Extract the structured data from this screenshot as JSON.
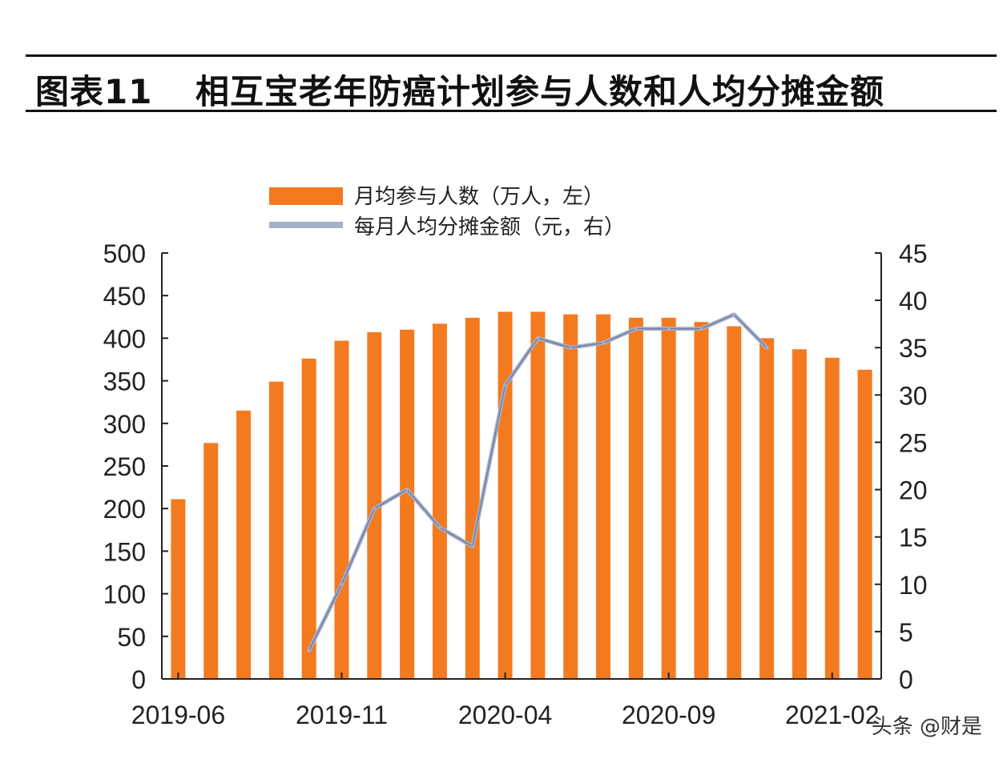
{
  "header": {
    "label": "图表11",
    "title": "相互宝老年防癌计划参与人数和人均分摊金额"
  },
  "watermark": "头条 @财是",
  "chart_data": {
    "type": "bar",
    "categories": [
      "2019-06",
      "2019-07",
      "2019-08",
      "2019-09",
      "2019-10",
      "2019-11",
      "2019-12",
      "2020-01",
      "2020-02",
      "2020-03",
      "2020-04",
      "2020-05",
      "2020-06",
      "2020-07",
      "2020-08",
      "2020-09",
      "2020-10",
      "2020-11",
      "2020-12",
      "2021-01",
      "2021-02",
      "2021-03"
    ],
    "x_tick_labels": [
      "2019-06",
      "2019-11",
      "2020-04",
      "2020-09",
      "2021-02"
    ],
    "legend": {
      "bar_label": "月均参与人数（万人，左）",
      "line_label": "每月人均分摊金额（元，右）",
      "placement": "top-center"
    },
    "colors": {
      "bar": "#f47a20",
      "line": "#a7b0c8",
      "axis": "#222222"
    },
    "series": [
      {
        "name": "月均参与人数（万人，左）",
        "type": "bar",
        "axis": "left",
        "values": [
          211,
          277,
          315,
          349,
          376,
          397,
          407,
          410,
          417,
          424,
          431,
          431,
          428,
          428,
          424,
          424,
          419,
          414,
          400,
          387,
          377,
          363
        ]
      },
      {
        "name": "每月人均分摊金额（元，右）",
        "type": "line",
        "axis": "right",
        "values": [
          null,
          null,
          null,
          null,
          3,
          10,
          18,
          20,
          16,
          14,
          31,
          36,
          35,
          35.5,
          37,
          37,
          37,
          38.5,
          35,
          null,
          null,
          null
        ]
      }
    ],
    "y_left": {
      "min": 0,
      "max": 500,
      "ticks": [
        0,
        50,
        100,
        150,
        200,
        250,
        300,
        350,
        400,
        450,
        500
      ]
    },
    "y_right": {
      "min": 0,
      "max": 45,
      "ticks": [
        0,
        5,
        10,
        15,
        20,
        25,
        30,
        35,
        40,
        45
      ]
    },
    "grid": false
  }
}
